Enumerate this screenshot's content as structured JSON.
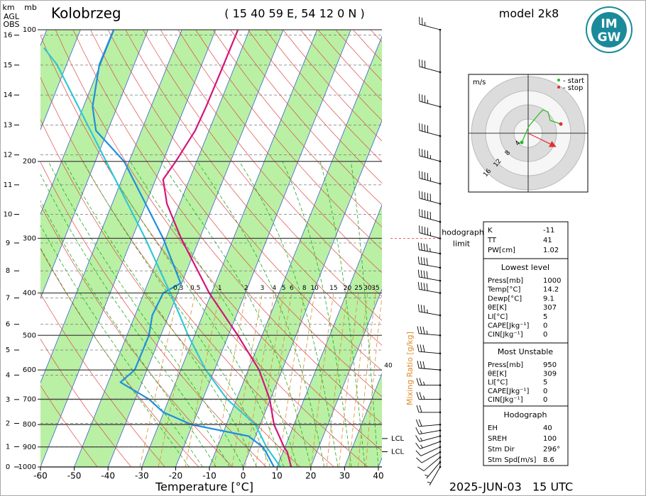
{
  "chart_data": {
    "type": "skewt",
    "title": "Kolobrzeg",
    "subtitle": "( 15 40 59 E, 54 12 0 N )",
    "model": "model 2k8",
    "x_label": "Temperature [°C]",
    "timestamp": "2025-JUN-03   15 UTC",
    "height_label": [
      "km",
      "AGL",
      "OBS"
    ],
    "pressure_unit": "mb",
    "xlim": [
      -60,
      40
    ],
    "xticks": [
      -60,
      -50,
      -40,
      -30,
      -20,
      -10,
      0,
      10,
      20,
      30,
      40
    ],
    "ylim": [
      1000,
      100
    ],
    "yticks": [
      100,
      200,
      300,
      400,
      500,
      600,
      700,
      800,
      900,
      1000
    ],
    "log_y": true,
    "heightticks": [
      0,
      1,
      2,
      3,
      4,
      5,
      6,
      7,
      8,
      9,
      10,
      11,
      12,
      13,
      14,
      15,
      16
    ],
    "mixing_ratio": {
      "label": "Mixing Ratio [g/kg]",
      "color": "#e08a2a",
      "ticks": [
        0.3,
        0.5,
        1,
        2,
        3,
        4,
        5,
        6,
        8,
        10,
        15,
        20,
        25,
        30,
        35,
        40
      ]
    },
    "lcl": [
      {
        "label": "LCL",
        "pressure": 861
      },
      {
        "label": "LCL",
        "pressure": 923
      }
    ],
    "hodograph_limit": {
      "label": [
        "hodograph",
        "limit"
      ],
      "pressure": 300,
      "color": "#e03030"
    },
    "series": [
      {
        "color": "#d4147a",
        "pressure": [
          1000,
          925,
          900,
          850,
          800,
          700,
          600,
          500,
          400,
          300,
          250,
          220,
          200,
          170,
          150,
          120,
          100
        ],
        "values": [
          14.2,
          11.3,
          9.7,
          7.0,
          4.1,
          -0.2,
          -6.8,
          -17.2,
          -30.7,
          -45.5,
          -53.8,
          -57.8,
          -56.2,
          -54.1,
          -53.7,
          -53.5,
          -53.4
        ]
      },
      {
        "color": "#1e8fe0",
        "pressure": [
          1000,
          925,
          900,
          850,
          800,
          750,
          700,
          640,
          600,
          500,
          450,
          400,
          380,
          300,
          200,
          170,
          150,
          120,
          100
        ],
        "values": [
          9.1,
          5,
          3.4,
          -2.1,
          -20.3,
          -30.1,
          -35.9,
          -46.4,
          -43.6,
          -43.5,
          -44.9,
          -44.3,
          -40.3,
          -50.8,
          -71.5,
          -83.5,
          -87.3,
          -90.3,
          -90.2
        ]
      },
      {
        "color": "#30c8d8",
        "pressure": [
          1000,
          900,
          800,
          700,
          600,
          500,
          400,
          300,
          200,
          150,
          120,
          110
        ],
        "values": [
          11,
          4.5,
          -1.4,
          -12.8,
          -22.6,
          -31.9,
          -42.2,
          -56.1,
          -76.8,
          -91.5,
          -102.9,
          -108.7
        ]
      }
    ],
    "winds": {
      "pressure": [
        100,
        125,
        150,
        175,
        200,
        225,
        250,
        275,
        300,
        325,
        350,
        375,
        400,
        450,
        500,
        550,
        600,
        650,
        700,
        750,
        800,
        825,
        850,
        875,
        900,
        925,
        950,
        975,
        1000
      ],
      "direction": [
        285,
        285,
        285,
        285,
        285,
        285,
        285,
        285,
        285,
        280,
        280,
        280,
        280,
        280,
        275,
        275,
        275,
        270,
        270,
        270,
        265,
        260,
        255,
        250,
        245,
        240,
        230,
        220,
        210
      ],
      "speed": [
        25,
        30,
        35,
        40,
        45,
        45,
        50,
        50,
        45,
        45,
        40,
        40,
        40,
        35,
        35,
        30,
        30,
        25,
        25,
        20,
        20,
        15,
        15,
        15,
        10,
        10,
        10,
        5,
        5
      ]
    }
  },
  "hodograph": {
    "unit": "m/s",
    "legend": [
      "- start",
      "- stop"
    ],
    "rings": [
      4,
      8,
      12,
      16
    ],
    "u": [
      -1.8,
      0.2,
      3.2,
      4.2,
      5.6,
      6.2,
      9.2
    ],
    "v": [
      -2.6,
      2,
      5.6,
      6.6,
      6,
      3.6,
      2.6
    ]
  },
  "indices": {
    "summary": [
      [
        "K",
        -11
      ],
      [
        "TT",
        41
      ],
      [
        "PW[cm]",
        1.02
      ]
    ],
    "sections": [
      {
        "title": "Lowest level",
        "rows": [
          [
            "Press[mb]",
            1000
          ],
          [
            "Temp[°C]",
            14.2
          ],
          [
            "Dewp[°C]",
            9.1
          ],
          [
            "θE[K]",
            307
          ],
          [
            "LI[°C]",
            5
          ],
          [
            "CAPE[Jkg⁻¹]",
            0
          ],
          [
            "CIN[Jkg⁻¹]",
            0
          ]
        ]
      },
      {
        "title": "Most Unstable",
        "rows": [
          [
            "Press[mb]",
            950
          ],
          [
            "θE[K]",
            309
          ],
          [
            "LI[°C]",
            5
          ],
          [
            "CAPE[Jkg⁻¹]",
            0
          ],
          [
            "CIN[Jkg⁻¹]",
            0
          ]
        ]
      },
      {
        "title": "Hodograph",
        "rows": [
          [
            "EH",
            40
          ],
          [
            "SREH",
            100
          ],
          [
            "Stm Dir",
            "296°"
          ],
          [
            "Stm Spd[m/s]",
            8.6
          ]
        ]
      }
    ]
  },
  "logo": [
    "IM",
    "GW"
  ]
}
